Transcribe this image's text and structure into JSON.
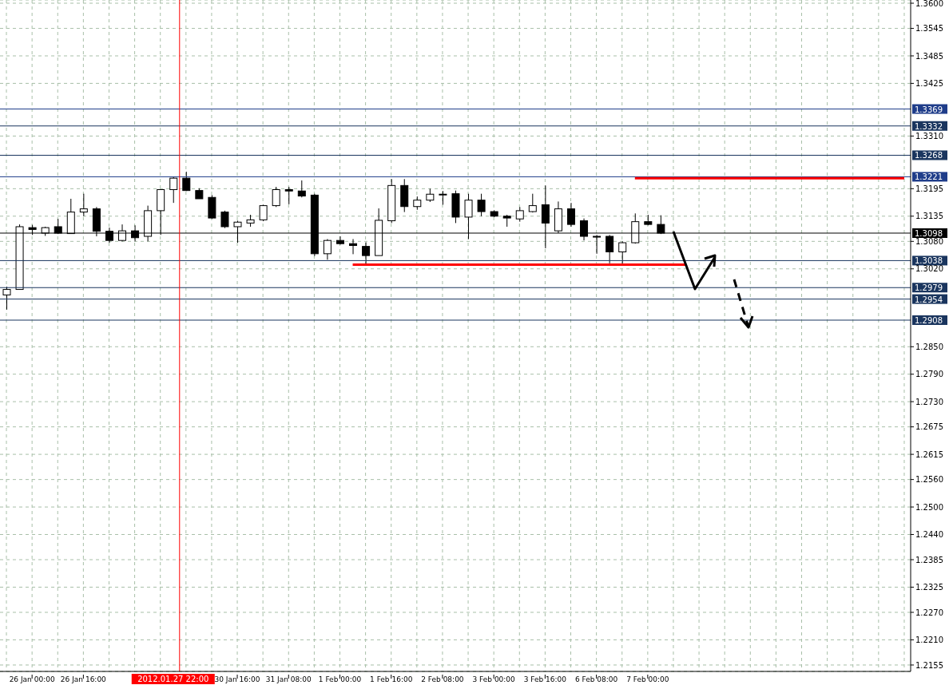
{
  "chart_data": {
    "type": "candlestick",
    "categories": [
      null,
      null,
      "26 Jan 00:00",
      null,
      null,
      null,
      "26 Jan 16:00",
      null,
      null,
      null,
      null,
      null,
      null,
      "2012.01.27 22:00",
      null,
      null,
      null,
      null,
      "30 Jan 16:00",
      null,
      null,
      null,
      "31 Jan 08:00",
      null,
      null,
      null,
      "1 Feb 00:00",
      null,
      null,
      null,
      "1 Feb 16:00",
      null,
      null,
      null,
      "2 Feb 08:00",
      null,
      null,
      null,
      "3 Feb 00:00",
      null,
      null,
      null,
      "3 Feb 16:00",
      null,
      null,
      null,
      "6 Feb 08:00",
      null,
      null,
      null,
      "7 Feb 00:00",
      null,
      null,
      null,
      null,
      null,
      null,
      null,
      null,
      null,
      null,
      null,
      null,
      null,
      null,
      null,
      null,
      null,
      null,
      null,
      null
    ],
    "ohlc": [
      [
        1.2963,
        1.2981,
        1.2931,
        1.2975
      ],
      [
        1.2975,
        1.3117,
        1.2975,
        1.3112
      ],
      [
        1.311,
        1.3116,
        1.3094,
        1.3106
      ],
      [
        1.3098,
        1.3112,
        1.3092,
        1.311
      ],
      [
        1.3112,
        1.3129,
        1.3096,
        1.3098
      ],
      [
        1.3097,
        1.3173,
        1.3097,
        1.3144
      ],
      [
        1.3144,
        1.3184,
        1.3135,
        1.3151
      ],
      [
        1.3151,
        1.3155,
        1.3091,
        1.3102
      ],
      [
        1.3102,
        1.311,
        1.3077,
        1.3082
      ],
      [
        1.3082,
        1.3117,
        1.308,
        1.3103
      ],
      [
        1.3103,
        1.3115,
        1.308,
        1.3088
      ],
      [
        1.3091,
        1.3158,
        1.308,
        1.3147
      ],
      [
        1.3147,
        1.3193,
        1.3094,
        1.3193
      ],
      [
        1.3193,
        1.322,
        1.3164,
        1.3218
      ],
      [
        1.3218,
        1.3232,
        1.319,
        1.3191
      ],
      [
        1.3191,
        1.3196,
        1.3173,
        1.3173
      ],
      [
        1.3176,
        1.3181,
        1.3129,
        1.3131
      ],
      [
        1.3144,
        1.3147,
        1.3109,
        1.3112
      ],
      [
        1.3112,
        1.3125,
        1.3077,
        1.3122
      ],
      [
        1.312,
        1.3138,
        1.3112,
        1.3127
      ],
      [
        1.3127,
        1.316,
        1.3124,
        1.3158
      ],
      [
        1.3158,
        1.3199,
        1.3155,
        1.3193
      ],
      [
        1.3193,
        1.3199,
        1.3161,
        1.319
      ],
      [
        1.319,
        1.3213,
        1.3176,
        1.3179
      ],
      [
        1.3181,
        1.3184,
        1.3048,
        1.3053
      ],
      [
        1.3053,
        1.3085,
        1.304,
        1.3082
      ],
      [
        1.3082,
        1.3091,
        1.3073,
        1.3075
      ],
      [
        1.3075,
        1.3085,
        1.3052,
        1.3071
      ],
      [
        1.3069,
        1.3078,
        1.303,
        1.3049
      ],
      [
        1.3049,
        1.3152,
        1.3049,
        1.3126
      ],
      [
        1.3125,
        1.3216,
        1.312,
        1.3202
      ],
      [
        1.3202,
        1.3216,
        1.3144,
        1.3156
      ],
      [
        1.3156,
        1.3178,
        1.3149,
        1.317
      ],
      [
        1.317,
        1.3195,
        1.3166,
        1.3183
      ],
      [
        1.3183,
        1.319,
        1.316,
        1.3183
      ],
      [
        1.3184,
        1.3191,
        1.312,
        1.3133
      ],
      [
        1.3133,
        1.3184,
        1.3085,
        1.317
      ],
      [
        1.317,
        1.3184,
        1.3135,
        1.3145
      ],
      [
        1.3145,
        1.3148,
        1.3133,
        1.3135
      ],
      [
        1.3135,
        1.3138,
        1.3112,
        1.3131
      ],
      [
        1.3129,
        1.3155,
        1.3123,
        1.3147
      ],
      [
        1.3145,
        1.3184,
        1.3143,
        1.3158
      ],
      [
        1.316,
        1.3202,
        1.3065,
        1.312
      ],
      [
        1.3103,
        1.3167,
        1.3098,
        1.3151
      ],
      [
        1.3151,
        1.3164,
        1.3112,
        1.3117
      ],
      [
        1.3125,
        1.313,
        1.3082,
        1.3091
      ],
      [
        1.3091,
        1.3094,
        1.3053,
        1.3091
      ],
      [
        1.3091,
        1.3094,
        1.3032,
        1.3057
      ],
      [
        1.3057,
        1.308,
        1.3032,
        1.3077
      ],
      [
        1.3077,
        1.3141,
        1.3075,
        1.3123
      ],
      [
        1.3123,
        1.3138,
        1.3115,
        1.3117
      ],
      [
        1.3117,
        1.3137,
        1.3096,
        1.3098
      ],
      null,
      null,
      null,
      null,
      null,
      null,
      null,
      null,
      null,
      null,
      null,
      null,
      null,
      null,
      null,
      null,
      null,
      null,
      null
    ],
    "series": [
      {
        "type": "line",
        "color": "#ff0000",
        "values": [
          null,
          null,
          null,
          null,
          null,
          null,
          null,
          null,
          null,
          null,
          null,
          null,
          null,
          null,
          null,
          null,
          null,
          null,
          null,
          null,
          null,
          null,
          null,
          null,
          null,
          null,
          null,
          1.3029,
          1.3029,
          1.3029,
          1.3029,
          1.3029,
          1.3029,
          1.3029,
          1.3029,
          1.3029,
          1.3029,
          1.3029,
          1.3029,
          1.3029,
          1.3029,
          1.3029,
          1.3029,
          1.3029,
          1.3029,
          1.3029,
          1.3029,
          1.3029,
          1.3029,
          1.3029,
          1.3029,
          1.3029,
          1.3029,
          1.3029,
          null,
          null,
          null,
          null,
          null,
          null,
          null,
          null,
          null,
          null,
          null,
          null,
          null,
          null,
          null,
          null,
          null
        ]
      },
      {
        "type": "line",
        "color": "#ff0000",
        "values": [
          null,
          null,
          null,
          null,
          null,
          null,
          null,
          null,
          null,
          null,
          null,
          null,
          null,
          null,
          null,
          null,
          null,
          null,
          null,
          null,
          null,
          null,
          null,
          null,
          null,
          null,
          null,
          null,
          null,
          null,
          null,
          null,
          null,
          null,
          null,
          null,
          null,
          null,
          null,
          null,
          null,
          null,
          null,
          null,
          null,
          null,
          null,
          null,
          null,
          1.3218,
          1.3218,
          1.3218,
          1.3218,
          1.3218,
          1.3218,
          1.3218,
          1.3218,
          1.3218,
          1.3218,
          1.3218,
          1.3218,
          1.3218,
          1.3218,
          1.3218,
          1.3218,
          1.3218,
          1.3218,
          1.3218,
          1.3218,
          1.3218,
          1.3218
        ]
      }
    ],
    "ylim": [
      1.2141,
      1.3607
    ],
    "yticks": [
      {
        "value": 1.36,
        "label": "1.3600"
      },
      1.3545,
      1.3485,
      1.3425,
      {
        "value": 1.331,
        "label": "1.3310"
      },
      1.3195,
      1.3135,
      {
        "value": 1.308,
        "label": "1.3080"
      },
      {
        "value": 1.302,
        "label": "1.3020"
      },
      {
        "value": 1.285,
        "label": "1.2850"
      },
      {
        "value": 1.279,
        "label": "1.2790"
      },
      {
        "value": 1.273,
        "label": "1.2730"
      },
      1.2675,
      1.2615,
      {
        "value": 1.256,
        "label": "1.2560"
      },
      {
        "value": 1.25,
        "label": "1.2500"
      },
      {
        "value": 1.244,
        "label": "1.2440"
      },
      1.2385,
      1.2325,
      {
        "value": 1.227,
        "label": "1.2270"
      },
      {
        "value": 1.221,
        "label": "1.2210"
      },
      1.2155
    ],
    "ref_lines": [
      {
        "axis": "y",
        "value": 1.3369,
        "label": "1.3369",
        "color": "#1f3d8a"
      },
      {
        "axis": "y",
        "value": 1.3332,
        "label": "1.3332",
        "color": "#1a355e"
      },
      {
        "axis": "y",
        "value": 1.3268,
        "label": "1.3268",
        "color": "#1a355e"
      },
      {
        "axis": "y",
        "value": 1.3221,
        "label": "1.3221",
        "color": "#1f3d8a"
      },
      {
        "axis": "y",
        "value": 1.3098,
        "label": "1.3098",
        "color": "#000000"
      },
      {
        "axis": "y",
        "value": 1.3038,
        "label": "1.3038",
        "color": "#1a355e"
      },
      {
        "axis": "y",
        "value": 1.2979,
        "label": "1.2979",
        "color": "#1a355e"
      },
      {
        "axis": "y",
        "value": 1.2954,
        "label": "1.2954",
        "color": "#1a355e"
      },
      {
        "axis": "y",
        "value": 1.2908,
        "label": "1.2908",
        "color": "#1a355e"
      },
      {
        "axis": "x",
        "value": "2012.01.27 22:00",
        "color": "#ff0000"
      }
    ],
    "grid": true
  }
}
